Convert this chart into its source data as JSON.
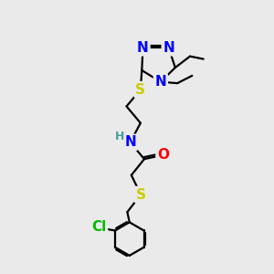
{
  "background_color": "#eaeaea",
  "atom_colors": {
    "N": "#0000ff",
    "S": "#cccc00",
    "O": "#ff0000",
    "Cl": "#00bb00",
    "C": "#000000",
    "H": "#4a9e9e"
  },
  "bond_color": "#000000",
  "bond_width": 1.6,
  "font_size_heavy": 11,
  "font_size_label": 9
}
